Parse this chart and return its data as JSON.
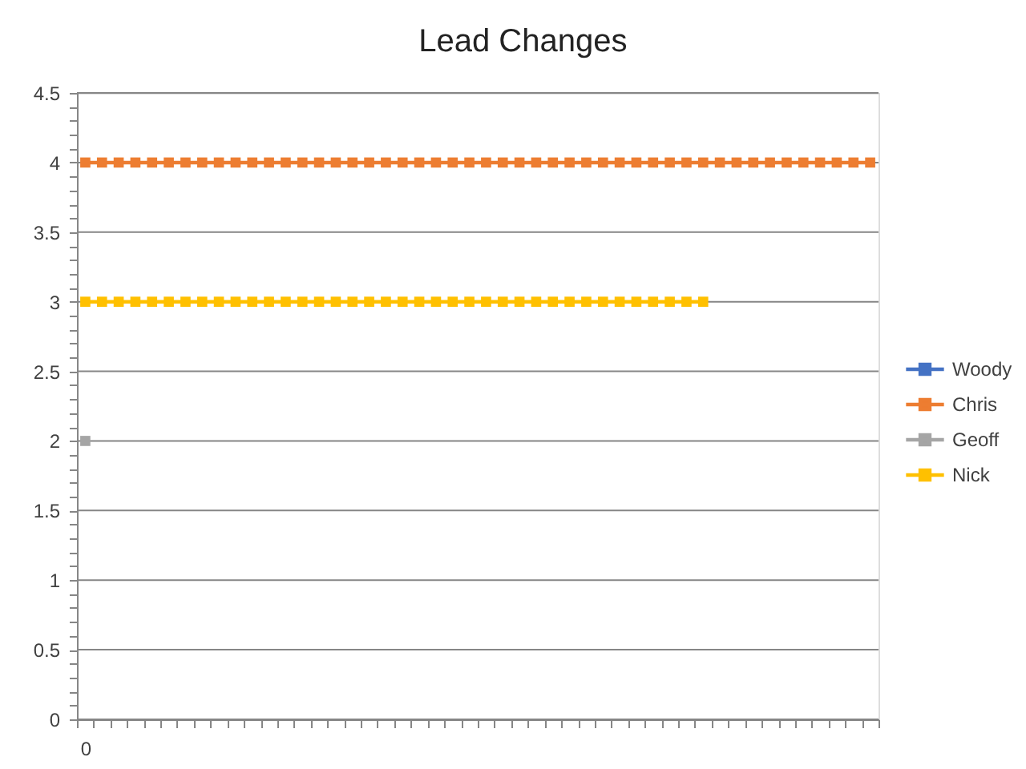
{
  "chart_data": {
    "type": "line",
    "title": "Lead Changes",
    "categories": [
      "0",
      null,
      null,
      null,
      null,
      null,
      null,
      null,
      null,
      null,
      null,
      null,
      null,
      null,
      null,
      null,
      null,
      null,
      null,
      null,
      null,
      null,
      null,
      null,
      null,
      null,
      null,
      null,
      null,
      null,
      null,
      null,
      null,
      null,
      null,
      null,
      null,
      null,
      null,
      null,
      null,
      null,
      null,
      null,
      null,
      null,
      null,
      null
    ],
    "series": [
      {
        "name": "Woody",
        "color": "#4472c4",
        "values": [
          null,
          null,
          null,
          null,
          null,
          null,
          null,
          null,
          null,
          null,
          null,
          null,
          null,
          null,
          null,
          null,
          null,
          null,
          null,
          null,
          null,
          null,
          null,
          null,
          null,
          null,
          null,
          null,
          null,
          null,
          null,
          null,
          null,
          null,
          null,
          null,
          null,
          null,
          null,
          null,
          null,
          null,
          null,
          null,
          null,
          null,
          null,
          null
        ]
      },
      {
        "name": "Chris",
        "color": "#ed7d31",
        "values": [
          4,
          4,
          4,
          4,
          4,
          4,
          4,
          4,
          4,
          4,
          4,
          4,
          4,
          4,
          4,
          4,
          4,
          4,
          4,
          4,
          4,
          4,
          4,
          4,
          4,
          4,
          4,
          4,
          4,
          4,
          4,
          4,
          4,
          4,
          4,
          4,
          4,
          4,
          4,
          4,
          4,
          4,
          4,
          4,
          4,
          4,
          4,
          4
        ]
      },
      {
        "name": "Geoff",
        "color": "#a5a5a5",
        "values": [
          2,
          null,
          null,
          null,
          null,
          null,
          null,
          null,
          null,
          null,
          null,
          null,
          null,
          null,
          null,
          null,
          null,
          null,
          null,
          null,
          null,
          null,
          null,
          null,
          null,
          null,
          null,
          null,
          null,
          null,
          null,
          null,
          null,
          null,
          null,
          null,
          null,
          null,
          null,
          null,
          null,
          null,
          null,
          null,
          null,
          null,
          null,
          null
        ]
      },
      {
        "name": "Nick",
        "color": "#ffc000",
        "values": [
          3,
          3,
          3,
          3,
          3,
          3,
          3,
          3,
          3,
          3,
          3,
          3,
          3,
          3,
          3,
          3,
          3,
          3,
          3,
          3,
          3,
          3,
          3,
          3,
          3,
          3,
          3,
          3,
          3,
          3,
          3,
          3,
          3,
          3,
          3,
          3,
          3,
          3,
          null,
          null,
          null,
          null,
          null,
          null,
          null,
          null,
          null,
          null
        ]
      }
    ],
    "ylim": [
      0,
      4.5
    ],
    "yticks": [
      0,
      {
        "value": 0.1,
        "label": null
      },
      {
        "value": 0.2,
        "label": null
      },
      {
        "value": 0.3,
        "label": null
      },
      {
        "value": 0.4,
        "label": null
      },
      0.5,
      {
        "value": 0.6,
        "label": null
      },
      {
        "value": 0.7,
        "label": null
      },
      {
        "value": 0.8,
        "label": null
      },
      {
        "value": 0.9,
        "label": null
      },
      1,
      {
        "value": 1.1,
        "label": null
      },
      {
        "value": 1.2,
        "label": null
      },
      {
        "value": 1.3,
        "label": null
      },
      {
        "value": 1.4,
        "label": null
      },
      1.5,
      {
        "value": 1.6,
        "label": null
      },
      {
        "value": 1.7,
        "label": null
      },
      {
        "value": 1.8,
        "label": null
      },
      {
        "value": 1.9,
        "label": null
      },
      2,
      {
        "value": 2.1,
        "label": null
      },
      {
        "value": 2.2,
        "label": null
      },
      {
        "value": 2.3,
        "label": null
      },
      {
        "value": 2.4,
        "label": null
      },
      2.5,
      {
        "value": 2.6,
        "label": null
      },
      {
        "value": 2.7,
        "label": null
      },
      {
        "value": 2.8,
        "label": null
      },
      {
        "value": 2.9,
        "label": null
      },
      3,
      {
        "value": 3.1,
        "label": null
      },
      {
        "value": 3.2,
        "label": null
      },
      {
        "value": 3.3,
        "label": null
      },
      {
        "value": 3.4,
        "label": null
      },
      3.5,
      {
        "value": 3.6,
        "label": null
      },
      {
        "value": 3.7,
        "label": null
      },
      {
        "value": 3.8,
        "label": null
      },
      {
        "value": 3.9,
        "label": null
      },
      4,
      {
        "value": 4.1,
        "label": null
      },
      {
        "value": 4.2,
        "label": null
      },
      {
        "value": 4.3,
        "label": null
      },
      {
        "value": 4.4,
        "label": null
      },
      4.5
    ],
    "grid": "y",
    "legend": "right",
    "marker": "square",
    "line_style": "solid"
  }
}
